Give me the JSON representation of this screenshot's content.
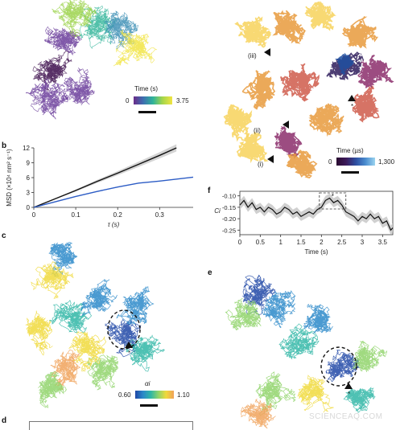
{
  "panels": {
    "b": "b",
    "c": "c",
    "d": "d",
    "e": "e",
    "f": "f"
  },
  "panel_a": {
    "colorbar_title": "Time (s)",
    "colorbar_min": "0",
    "colorbar_max": "3.75",
    "colors": [
      "#3a0a4a",
      "#6a3c9a",
      "#3d8fb5",
      "#32b59a",
      "#9bd24a",
      "#f1e442"
    ]
  },
  "panel_top_right": {
    "labels": [
      "(iii)",
      "(ii)",
      "(i)",
      "*"
    ],
    "colorbar_title": "Time (µs)",
    "colorbar_min": "0",
    "colorbar_max": "1,300",
    "colors": [
      "#f7d25b",
      "#e79a3c",
      "#cf5b4a",
      "#8b2d6b",
      "#2d1b5a",
      "#1e4fa0",
      "#9bd4ef"
    ]
  },
  "panel_c": {
    "colorbar_title": "αi",
    "colorbar_min": "0.60",
    "colorbar_max": "1.10",
    "marker": "*",
    "colors": [
      "#1f47a6",
      "#2a88c9",
      "#2fb6a6",
      "#8fd46a",
      "#f0d93b",
      "#f0a25a"
    ]
  },
  "panel_e": {
    "marker": "*"
  },
  "panel_f_labels": {
    "ylabel": "Ci",
    "xlabel": "Time (s)",
    "marker": "*"
  },
  "chart_data": [
    {
      "type": "line",
      "panel": "b",
      "ylabel": "MSD (×10⁴ nm² s⁻¹)",
      "xlabel": "τ (s)",
      "xlim": [
        0,
        0.38
      ],
      "ylim": [
        0,
        12
      ],
      "yticks": [
        "0",
        "3",
        "6",
        "9",
        "12"
      ],
      "xticks": [
        "0",
        "0.1",
        "0.2",
        "0.3"
      ],
      "series": [
        {
          "color": "#111111",
          "x": [
            0,
            0.05,
            0.1,
            0.15,
            0.2,
            0.25,
            0.3,
            0.34
          ],
          "y": [
            0,
            1.7,
            3.4,
            5.2,
            6.9,
            8.7,
            10.5,
            12
          ]
        },
        {
          "color": "#2c5cc5",
          "x": [
            0,
            0.05,
            0.1,
            0.15,
            0.2,
            0.25,
            0.3,
            0.38
          ],
          "y": [
            0,
            1.1,
            2.2,
            3.2,
            4.1,
            4.9,
            5.3,
            6.1
          ]
        }
      ]
    },
    {
      "type": "line",
      "panel": "f",
      "xlabel": "Time (s)",
      "ylabel": "Ci",
      "xlim": [
        0,
        3.75
      ],
      "ylim": [
        -0.27,
        -0.08
      ],
      "yticks": [
        "-0.10",
        "-0.15",
        "-0.20",
        "-0.25"
      ],
      "xticks": [
        "0",
        "0.5",
        "1",
        "1.5",
        "2",
        "2.5",
        "3",
        "3.5"
      ],
      "series": [
        {
          "color": "#111111",
          "x": [
            0,
            0.1,
            0.2,
            0.3,
            0.4,
            0.5,
            0.6,
            0.7,
            0.8,
            0.9,
            1.0,
            1.1,
            1.2,
            1.3,
            1.4,
            1.5,
            1.6,
            1.7,
            1.8,
            1.9,
            2.0,
            2.1,
            2.2,
            2.3,
            2.4,
            2.5,
            2.6,
            2.7,
            2.8,
            2.9,
            3.0,
            3.1,
            3.2,
            3.3,
            3.4,
            3.5,
            3.6,
            3.7,
            3.75
          ],
          "y": [
            -0.14,
            -0.12,
            -0.15,
            -0.13,
            -0.16,
            -0.15,
            -0.17,
            -0.15,
            -0.16,
            -0.18,
            -0.17,
            -0.15,
            -0.16,
            -0.18,
            -0.17,
            -0.19,
            -0.18,
            -0.17,
            -0.18,
            -0.16,
            -0.15,
            -0.12,
            -0.11,
            -0.13,
            -0.12,
            -0.14,
            -0.17,
            -0.18,
            -0.19,
            -0.21,
            -0.19,
            -0.2,
            -0.18,
            -0.2,
            -0.19,
            -0.22,
            -0.21,
            -0.25,
            -0.24
          ]
        }
      ]
    }
  ],
  "watermark": "SCIENCEAQ.COM"
}
